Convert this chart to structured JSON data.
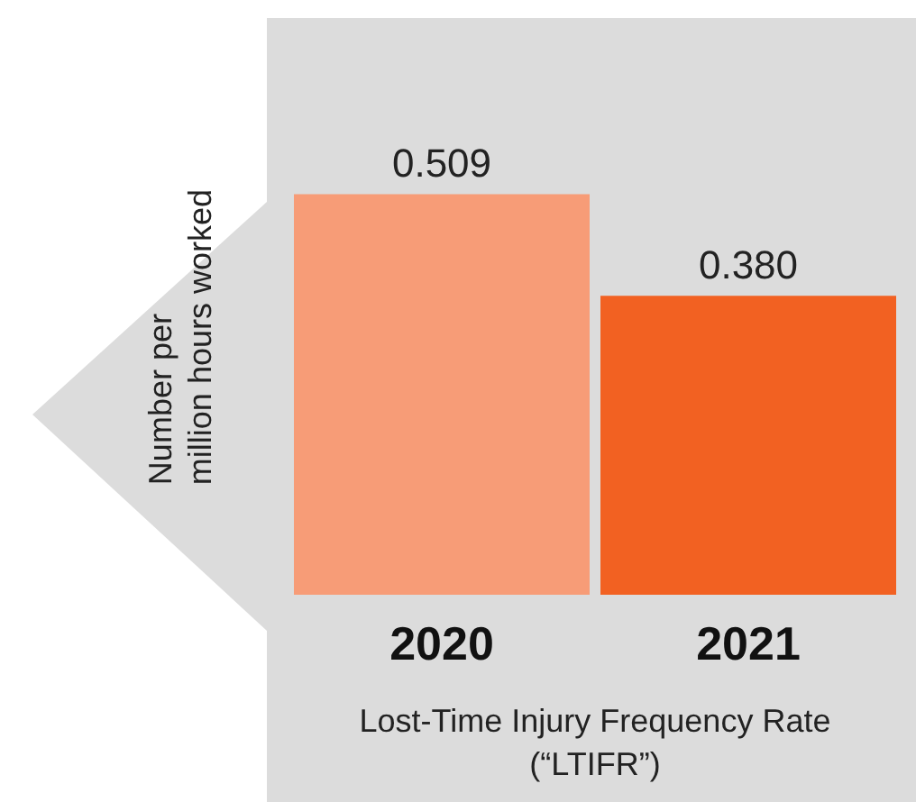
{
  "chart_data": {
    "type": "bar",
    "categories": [
      "2020",
      "2021"
    ],
    "values": [
      0.509,
      0.38
    ],
    "colors": [
      "#f79c77",
      "#f26122"
    ],
    "value_labels": [
      "0.509",
      "0.380"
    ],
    "xlabel": "Lost-Time Injury Frequency Rate\n(“LTIFR”)",
    "ylabel": "Number per\nmillion hours worked"
  }
}
